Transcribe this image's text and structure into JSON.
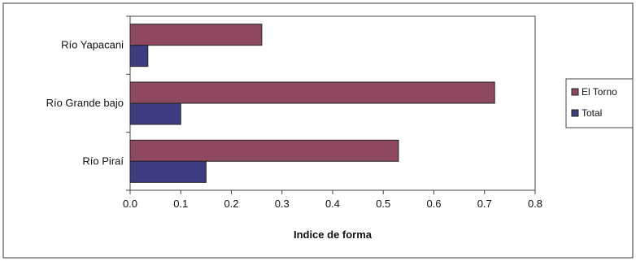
{
  "chart_data": {
    "type": "bar",
    "orientation": "horizontal",
    "categories": [
      "Río Yapacani",
      "Río Grande bajo",
      "Río Piraí"
    ],
    "series": [
      {
        "name": "El Torno",
        "values": [
          0.26,
          0.72,
          0.53
        ]
      },
      {
        "name": "Total",
        "values": [
          0.035,
          0.1,
          0.15
        ]
      }
    ],
    "xlabel": "Indice de forma",
    "ylabel": "",
    "xlim": [
      0,
      0.8
    ],
    "xticks": [
      "0.0",
      "0.1",
      "0.2",
      "0.3",
      "0.4",
      "0.5",
      "0.6",
      "0.7",
      "0.8"
    ],
    "grid": false,
    "legend_position": "right",
    "colors": {
      "El Torno": "#8e4862",
      "Total": "#3e3d82"
    }
  }
}
